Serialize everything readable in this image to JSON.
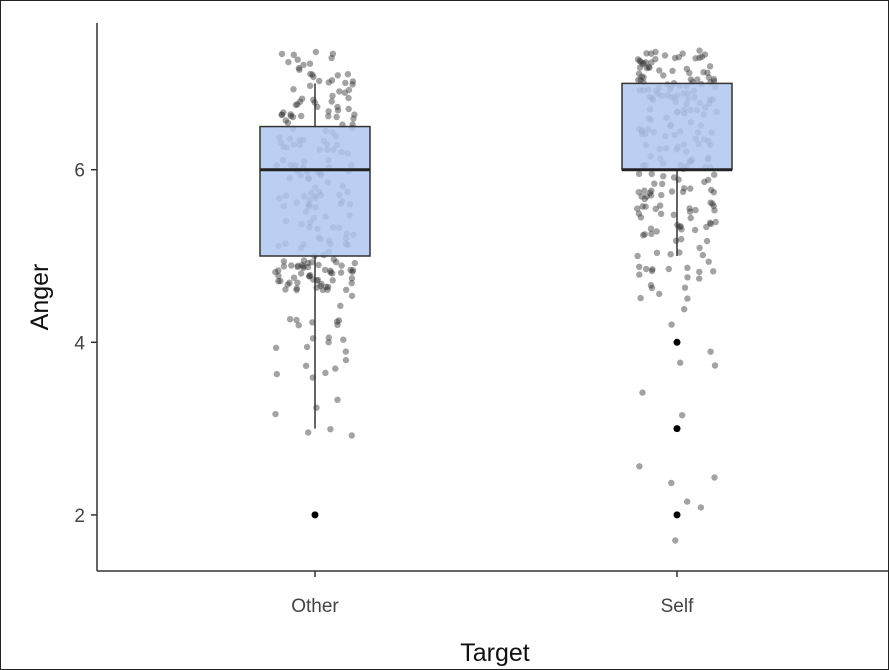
{
  "chart_data": {
    "type": "boxplot",
    "xlabel": "Target",
    "ylabel": "Anger",
    "categories": [
      "Other",
      "Self"
    ],
    "ylim": [
      1.35,
      7.7
    ],
    "yticks": [
      2,
      4,
      6
    ],
    "grid": false,
    "box_fill": "#aec7ee",
    "box_stroke": "#333333",
    "point_color": "#333333",
    "boxes": [
      {
        "category": "Other",
        "min": 3.0,
        "q1": 5.0,
        "median": 6.0,
        "q3": 6.5,
        "max": 7.0,
        "outliers": [
          2.0
        ]
      },
      {
        "category": "Self",
        "min": 5.0,
        "q1": 6.0,
        "median": 6.0,
        "q3": 7.0,
        "max": 7.0,
        "outliers": [
          4.0,
          3.0,
          2.0
        ]
      }
    ]
  }
}
